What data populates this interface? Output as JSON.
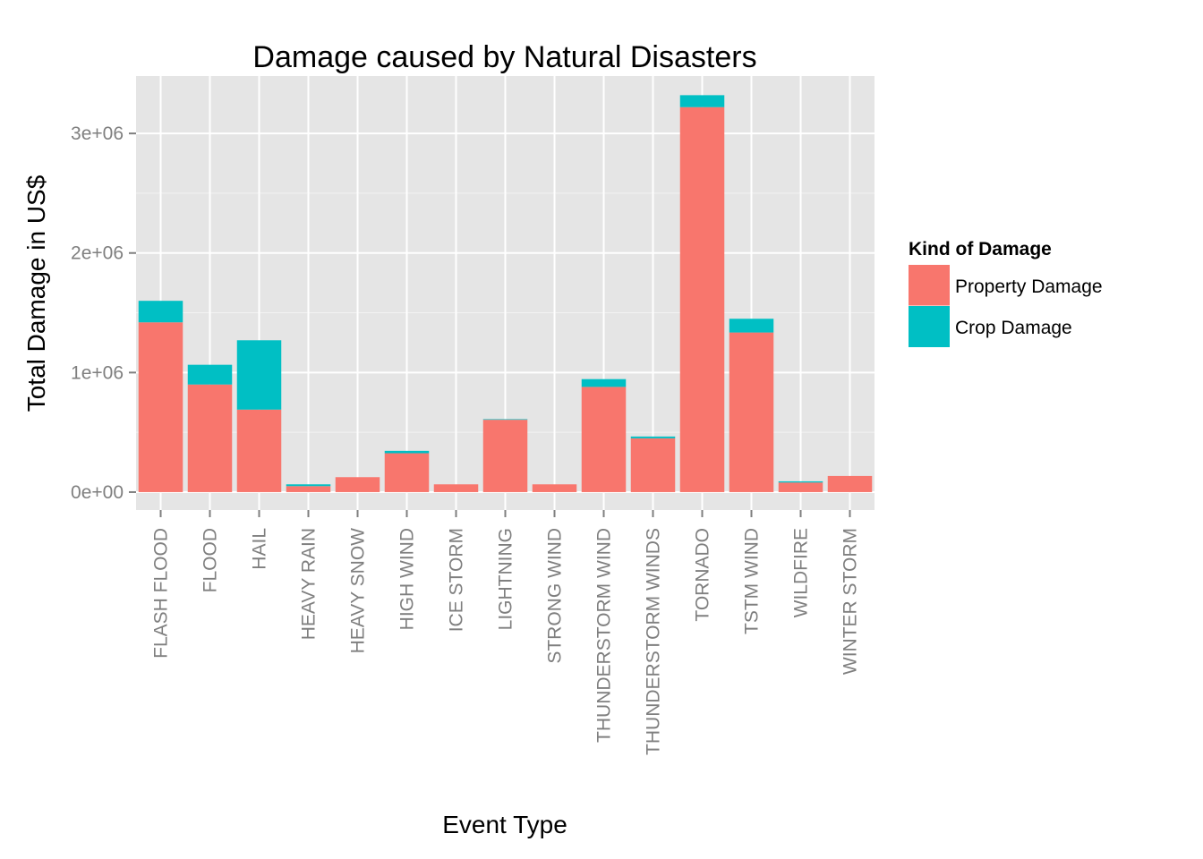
{
  "chart_data": {
    "type": "bar",
    "stacked": true,
    "title": "Damage caused by Natural Disasters",
    "xlabel": "Event Type",
    "ylabel": "Total Damage in US$",
    "categories": [
      "FLASH FLOOD",
      "FLOOD",
      "HAIL",
      "HEAVY RAIN",
      "HEAVY SNOW",
      "HIGH WIND",
      "ICE STORM",
      "LIGHTNING",
      "STRONG WIND",
      "THUNDERSTORM WIND",
      "THUNDERSTORM WINDS",
      "TORNADO",
      "TSTM WIND",
      "WILDFIRE",
      "WINTER STORM"
    ],
    "series": [
      {
        "name": "Property Damage",
        "color": "#f8766d",
        "values": [
          1420000,
          900000,
          690000,
          50000,
          125000,
          325000,
          65000,
          605000,
          65000,
          880000,
          450000,
          3220000,
          1335000,
          80000,
          135000
        ]
      },
      {
        "name": "Crop Damage",
        "color": "#00bfc4",
        "values": [
          180000,
          165000,
          580000,
          15000,
          0,
          20000,
          0,
          5000,
          0,
          65000,
          15000,
          100000,
          115000,
          10000,
          0
        ]
      }
    ],
    "ylim": [
      -150000,
      3480000
    ],
    "yticks": [
      0,
      1000000,
      2000000,
      3000000
    ],
    "ytick_labels": [
      "0e+00",
      "1e+06",
      "2e+06",
      "3e+06"
    ],
    "grid": true,
    "legend": {
      "title": "Kind of Damage",
      "position": "right"
    }
  },
  "colors": {
    "panel_background": "#e5e5e5",
    "grid": "#ffffff",
    "tick": "#7f7f7f"
  }
}
